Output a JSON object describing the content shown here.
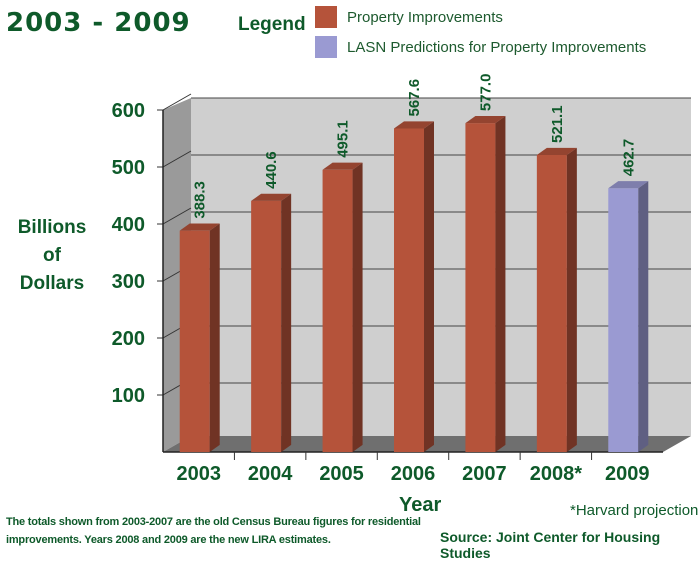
{
  "title": "2003 - 2009",
  "legend": {
    "heading": "Legend",
    "items": [
      {
        "label": "Property Improvements",
        "color": "#b5533a"
      },
      {
        "label": "LASN Predictions for Property Improvements",
        "color": "#9a9ad2"
      }
    ]
  },
  "ylabel_lines": [
    "Billions",
    "of",
    "Dollars"
  ],
  "xlabel": "Year",
  "footnote": "The totals shown from 2003-2007 are the old Census Bureau figures for residential improvements. Years 2008 and 2009 are the new LIRA estimates.",
  "harvard_note": "*Harvard projection",
  "source": "Source: Joint Center for Housing Studies",
  "chart_data": {
    "type": "bar",
    "categories": [
      "2003",
      "2004",
      "2005",
      "2006",
      "2007",
      "2008*",
      "2009"
    ],
    "values": [
      388.3,
      440.6,
      495.1,
      567.6,
      577.0,
      521.1,
      462.7
    ],
    "value_labels": [
      "388.3",
      "440.6",
      "495.1",
      "567.6",
      "577.0",
      "521.1",
      "462.7"
    ],
    "series_of_bar": [
      0,
      0,
      0,
      0,
      0,
      0,
      1
    ],
    "ylim": [
      0,
      600
    ],
    "yticks": [
      "100",
      "200",
      "300",
      "400",
      "500",
      "600"
    ],
    "ytick_values": [
      100,
      200,
      300,
      400,
      500,
      600
    ],
    "grid": true,
    "legend_position": "top"
  }
}
